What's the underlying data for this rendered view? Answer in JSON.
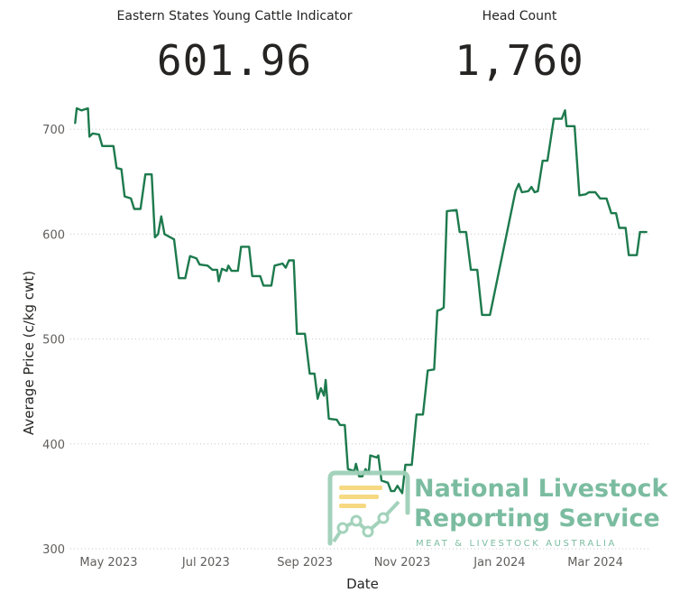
{
  "kpis": [
    {
      "label": "Eastern States Young Cattle Indicator",
      "value": "601.96"
    },
    {
      "label": "Head Count",
      "value": "1,760"
    }
  ],
  "watermark": {
    "line1": "National Livestock",
    "line2": "Reporting Service",
    "line3": "MEAT & LIVESTOCK AUSTRALIA"
  },
  "chart_data": {
    "type": "line",
    "xlabel": "Date",
    "ylabel": "Average Price (c/kg cwt)",
    "ylim": [
      300,
      720
    ],
    "yticks": [
      300,
      400,
      500,
      600,
      700
    ],
    "xlim": [
      "2023-04-07",
      "2024-04-05"
    ],
    "xticks": [
      {
        "date": "2023-05-01",
        "label": "May 2023"
      },
      {
        "date": "2023-07-01",
        "label": "Jul 2023"
      },
      {
        "date": "2023-09-01",
        "label": "Sep 2023"
      },
      {
        "date": "2023-11-01",
        "label": "Nov 2023"
      },
      {
        "date": "2024-01-01",
        "label": "Jan 2024"
      },
      {
        "date": "2024-03-01",
        "label": "Mar 2024"
      }
    ],
    "grid": "horizontal-dotted",
    "series": [
      {
        "color": "#1d7a4d",
        "points": [
          [
            "2023-04-10",
            706
          ],
          [
            "2023-04-11",
            720
          ],
          [
            "2023-04-14",
            718
          ],
          [
            "2023-04-18",
            720
          ],
          [
            "2023-04-19",
            693
          ],
          [
            "2023-04-21",
            696
          ],
          [
            "2023-04-25",
            695
          ],
          [
            "2023-04-27",
            684
          ],
          [
            "2023-05-04",
            684
          ],
          [
            "2023-05-06",
            663
          ],
          [
            "2023-05-09",
            662
          ],
          [
            "2023-05-11",
            636
          ],
          [
            "2023-05-15",
            634
          ],
          [
            "2023-05-17",
            624
          ],
          [
            "2023-05-21",
            624
          ],
          [
            "2023-05-24",
            657
          ],
          [
            "2023-05-28",
            657
          ],
          [
            "2023-05-30",
            597
          ],
          [
            "2023-06-01",
            600
          ],
          [
            "2023-06-03",
            617
          ],
          [
            "2023-06-05",
            600
          ],
          [
            "2023-06-11",
            595
          ],
          [
            "2023-06-14",
            558
          ],
          [
            "2023-06-18",
            558
          ],
          [
            "2023-06-21",
            579
          ],
          [
            "2023-06-25",
            577
          ],
          [
            "2023-06-27",
            571
          ],
          [
            "2023-07-02",
            570
          ],
          [
            "2023-07-05",
            566
          ],
          [
            "2023-07-08",
            566
          ],
          [
            "2023-07-09",
            555
          ],
          [
            "2023-07-11",
            567
          ],
          [
            "2023-07-14",
            565
          ],
          [
            "2023-07-15",
            570
          ],
          [
            "2023-07-17",
            565
          ],
          [
            "2023-07-21",
            565
          ],
          [
            "2023-07-23",
            588
          ],
          [
            "2023-07-28",
            588
          ],
          [
            "2023-07-30",
            560
          ],
          [
            "2023-08-04",
            560
          ],
          [
            "2023-08-06",
            551
          ],
          [
            "2023-08-11",
            551
          ],
          [
            "2023-08-13",
            570
          ],
          [
            "2023-08-18",
            572
          ],
          [
            "2023-08-20",
            568
          ],
          [
            "2023-08-22",
            575
          ],
          [
            "2023-08-25",
            575
          ],
          [
            "2023-08-27",
            505
          ],
          [
            "2023-09-01",
            505
          ],
          [
            "2023-09-04",
            467
          ],
          [
            "2023-09-07",
            467
          ],
          [
            "2023-09-09",
            443
          ],
          [
            "2023-09-11",
            453
          ],
          [
            "2023-09-13",
            446
          ],
          [
            "2023-09-14",
            461
          ],
          [
            "2023-09-16",
            424
          ],
          [
            "2023-09-21",
            423
          ],
          [
            "2023-09-23",
            418
          ],
          [
            "2023-09-26",
            418
          ],
          [
            "2023-09-28",
            376
          ],
          [
            "2023-10-02",
            374
          ],
          [
            "2023-10-03",
            381
          ],
          [
            "2023-10-05",
            369
          ],
          [
            "2023-10-07",
            369
          ],
          [
            "2023-10-09",
            376
          ],
          [
            "2023-10-11",
            372
          ],
          [
            "2023-10-12",
            389
          ],
          [
            "2023-10-16",
            387
          ],
          [
            "2023-10-17",
            389
          ],
          [
            "2023-10-19",
            365
          ],
          [
            "2023-10-23",
            363
          ],
          [
            "2023-10-25",
            355
          ],
          [
            "2023-10-27",
            355
          ],
          [
            "2023-10-29",
            360
          ],
          [
            "2023-11-01",
            353
          ],
          [
            "2023-11-03",
            380
          ],
          [
            "2023-11-07",
            380
          ],
          [
            "2023-11-10",
            428
          ],
          [
            "2023-11-14",
            428
          ],
          [
            "2023-11-17",
            470
          ],
          [
            "2023-11-21",
            471
          ],
          [
            "2023-11-23",
            527
          ],
          [
            "2023-11-25",
            528
          ],
          [
            "2023-11-27",
            530
          ],
          [
            "2023-11-29",
            622
          ],
          [
            "2023-12-05",
            623
          ],
          [
            "2023-12-07",
            602
          ],
          [
            "2023-12-11",
            602
          ],
          [
            "2023-12-14",
            566
          ],
          [
            "2023-12-18",
            566
          ],
          [
            "2023-12-21",
            523
          ],
          [
            "2023-12-26",
            523
          ],
          [
            "2024-01-11",
            641
          ],
          [
            "2024-01-13",
            648
          ],
          [
            "2024-01-15",
            640
          ],
          [
            "2024-01-19",
            641
          ],
          [
            "2024-01-21",
            645
          ],
          [
            "2024-01-23",
            640
          ],
          [
            "2024-01-25",
            641
          ],
          [
            "2024-01-28",
            670
          ],
          [
            "2024-01-31",
            670
          ],
          [
            "2024-02-04",
            710
          ],
          [
            "2024-02-09",
            710
          ],
          [
            "2024-02-11",
            718
          ],
          [
            "2024-02-12",
            703
          ],
          [
            "2024-02-17",
            703
          ],
          [
            "2024-02-20",
            637
          ],
          [
            "2024-02-24",
            638
          ],
          [
            "2024-02-26",
            640
          ],
          [
            "2024-03-01",
            640
          ],
          [
            "2024-03-04",
            634
          ],
          [
            "2024-03-08",
            634
          ],
          [
            "2024-03-11",
            620
          ],
          [
            "2024-03-14",
            620
          ],
          [
            "2024-03-16",
            606
          ],
          [
            "2024-03-20",
            606
          ],
          [
            "2024-03-22",
            580
          ],
          [
            "2024-03-27",
            580
          ],
          [
            "2024-03-29",
            602
          ],
          [
            "2024-04-02",
            602
          ]
        ]
      }
    ]
  }
}
